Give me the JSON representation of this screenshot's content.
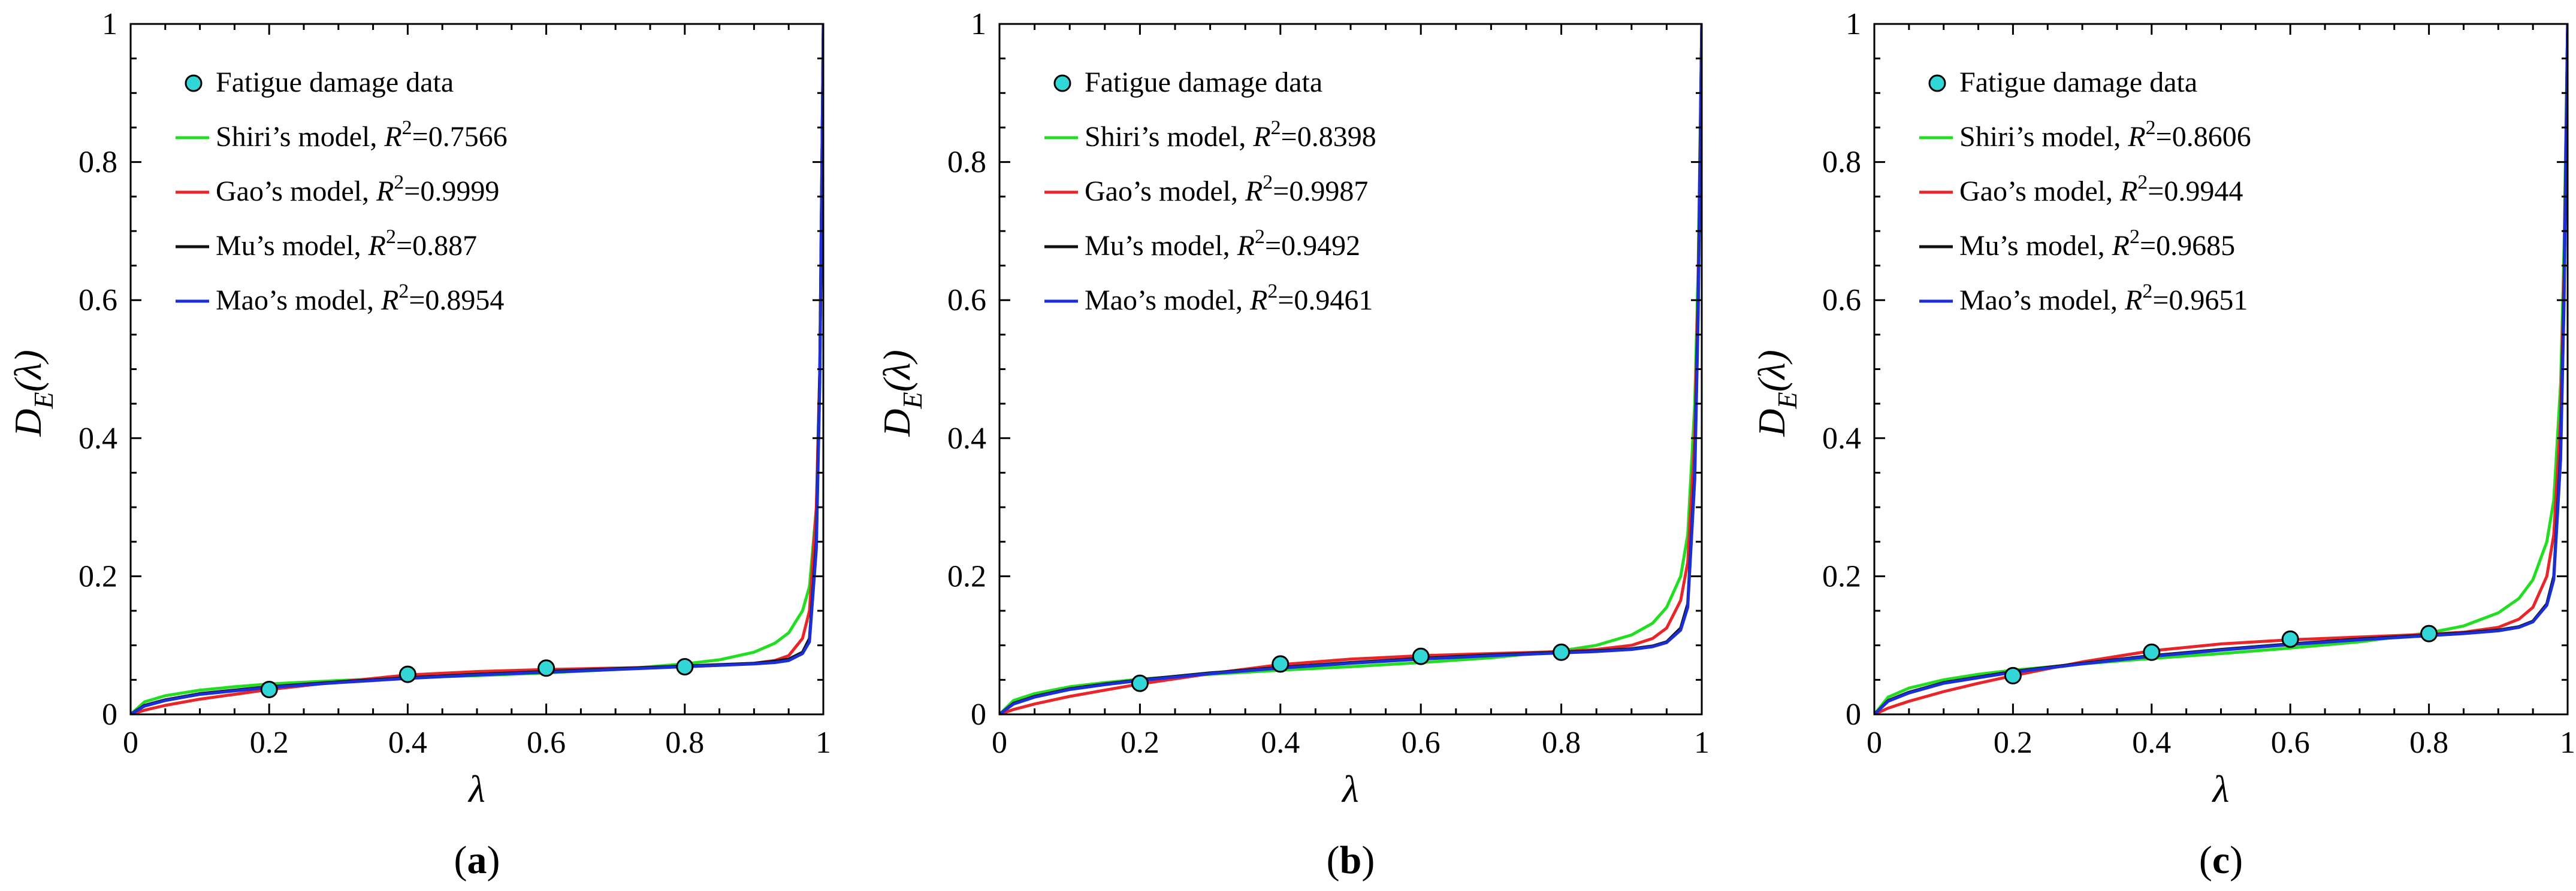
{
  "chart_data": [
    {
      "type": "line",
      "panel_label": "a",
      "xlabel": "λ",
      "ylabel_main": "D",
      "ylabel_sub": "E",
      "ylabel_arg": "(λ)",
      "xlim": [
        0,
        1
      ],
      "ylim": [
        0,
        1
      ],
      "x_ticks": [
        "0",
        "0.2",
        "0.4",
        "0.6",
        "0.8",
        "1"
      ],
      "y_ticks": [
        "0",
        "0.2",
        "0.4",
        "0.6",
        "0.8",
        "1"
      ],
      "scatter": {
        "name": "Fatigue damage data",
        "color": "#33d6d6",
        "x": [
          0.2,
          0.4,
          0.6,
          0.8
        ],
        "y": [
          0.036,
          0.058,
          0.067,
          0.069
        ]
      },
      "series": [
        {
          "name": "Shiri’s model",
          "r2": "0.7566",
          "color": "#22dd22",
          "x": [
            0,
            0.02,
            0.05,
            0.1,
            0.15,
            0.2,
            0.3,
            0.4,
            0.5,
            0.6,
            0.7,
            0.8,
            0.85,
            0.9,
            0.93,
            0.95,
            0.97,
            0.98,
            0.99,
            0.995,
            1.0
          ],
          "y": [
            0,
            0.018,
            0.027,
            0.035,
            0.04,
            0.044,
            0.049,
            0.053,
            0.056,
            0.06,
            0.065,
            0.073,
            0.079,
            0.09,
            0.103,
            0.118,
            0.15,
            0.185,
            0.3,
            0.5,
            1.0
          ]
        },
        {
          "name": "Gao’s model",
          "r2": "0.9999",
          "color": "#e8262a",
          "x": [
            0,
            0.02,
            0.05,
            0.1,
            0.15,
            0.2,
            0.3,
            0.4,
            0.5,
            0.6,
            0.7,
            0.8,
            0.85,
            0.9,
            0.93,
            0.95,
            0.97,
            0.98,
            0.99,
            0.995,
            1.0
          ],
          "y": [
            0,
            0.006,
            0.013,
            0.022,
            0.029,
            0.036,
            0.047,
            0.057,
            0.062,
            0.065,
            0.067,
            0.069,
            0.071,
            0.074,
            0.078,
            0.085,
            0.11,
            0.15,
            0.3,
            0.5,
            1.0
          ]
        },
        {
          "name": "Mu’s model",
          "r2": "0.887",
          "color": "#111111",
          "x": [
            0,
            0.02,
            0.05,
            0.1,
            0.15,
            0.2,
            0.3,
            0.4,
            0.5,
            0.6,
            0.7,
            0.8,
            0.85,
            0.9,
            0.93,
            0.95,
            0.97,
            0.98,
            0.99,
            0.995,
            1.0
          ],
          "y": [
            0,
            0.013,
            0.021,
            0.03,
            0.035,
            0.04,
            0.047,
            0.053,
            0.058,
            0.062,
            0.066,
            0.07,
            0.072,
            0.074,
            0.077,
            0.08,
            0.09,
            0.11,
            0.25,
            0.5,
            1.0
          ]
        },
        {
          "name": "Mao’s model",
          "r2": "0.8954",
          "color": "#1a2fd8",
          "x": [
            0,
            0.02,
            0.05,
            0.1,
            0.15,
            0.2,
            0.3,
            0.4,
            0.5,
            0.6,
            0.7,
            0.8,
            0.85,
            0.9,
            0.93,
            0.95,
            0.97,
            0.98,
            0.99,
            0.995,
            1.0
          ],
          "y": [
            0,
            0.012,
            0.02,
            0.029,
            0.034,
            0.039,
            0.046,
            0.052,
            0.057,
            0.061,
            0.065,
            0.069,
            0.071,
            0.073,
            0.075,
            0.078,
            0.088,
            0.105,
            0.24,
            0.48,
            1.0
          ]
        }
      ]
    },
    {
      "type": "line",
      "panel_label": "b",
      "xlabel": "λ",
      "ylabel_main": "D",
      "ylabel_sub": "E",
      "ylabel_arg": "(λ)",
      "xlim": [
        0,
        1
      ],
      "ylim": [
        0,
        1
      ],
      "x_ticks": [
        "0",
        "0.2",
        "0.4",
        "0.6",
        "0.8",
        "1"
      ],
      "y_ticks": [
        "0",
        "0.2",
        "0.4",
        "0.6",
        "0.8",
        "1"
      ],
      "scatter": {
        "name": "Fatigue damage data",
        "color": "#33d6d6",
        "x": [
          0.2,
          0.4,
          0.6,
          0.8
        ],
        "y": [
          0.045,
          0.073,
          0.084,
          0.09
        ]
      },
      "series": [
        {
          "name": "Shiri’s model",
          "r2": "0.8398",
          "color": "#22dd22",
          "x": [
            0,
            0.02,
            0.05,
            0.1,
            0.15,
            0.2,
            0.3,
            0.4,
            0.5,
            0.6,
            0.7,
            0.8,
            0.85,
            0.9,
            0.93,
            0.95,
            0.97,
            0.98,
            0.99,
            0.995,
            1.0
          ],
          "y": [
            0,
            0.02,
            0.03,
            0.04,
            0.046,
            0.051,
            0.058,
            0.064,
            0.069,
            0.075,
            0.082,
            0.092,
            0.1,
            0.115,
            0.132,
            0.155,
            0.2,
            0.26,
            0.45,
            0.65,
            1.0
          ]
        },
        {
          "name": "Gao’s model",
          "r2": "0.9987",
          "color": "#e8262a",
          "x": [
            0,
            0.02,
            0.05,
            0.1,
            0.15,
            0.2,
            0.3,
            0.4,
            0.5,
            0.6,
            0.7,
            0.8,
            0.85,
            0.9,
            0.93,
            0.95,
            0.97,
            0.98,
            0.99,
            0.995,
            1.0
          ],
          "y": [
            0,
            0.007,
            0.015,
            0.026,
            0.035,
            0.044,
            0.059,
            0.072,
            0.08,
            0.085,
            0.088,
            0.091,
            0.094,
            0.1,
            0.11,
            0.125,
            0.165,
            0.22,
            0.4,
            0.62,
            1.0
          ]
        },
        {
          "name": "Mu’s model",
          "r2": "0.9492",
          "color": "#111111",
          "x": [
            0,
            0.02,
            0.05,
            0.1,
            0.15,
            0.2,
            0.3,
            0.4,
            0.5,
            0.6,
            0.7,
            0.8,
            0.85,
            0.9,
            0.93,
            0.95,
            0.97,
            0.98,
            0.99,
            0.995,
            1.0
          ],
          "y": [
            0,
            0.016,
            0.026,
            0.037,
            0.044,
            0.05,
            0.06,
            0.068,
            0.075,
            0.081,
            0.086,
            0.09,
            0.092,
            0.095,
            0.099,
            0.105,
            0.125,
            0.16,
            0.35,
            0.6,
            1.0
          ]
        },
        {
          "name": "Mao’s model",
          "r2": "0.9461",
          "color": "#1a2fd8",
          "x": [
            0,
            0.02,
            0.05,
            0.1,
            0.15,
            0.2,
            0.3,
            0.4,
            0.5,
            0.6,
            0.7,
            0.8,
            0.85,
            0.9,
            0.93,
            0.95,
            0.97,
            0.98,
            0.99,
            0.995,
            1.0
          ],
          "y": [
            0,
            0.015,
            0.025,
            0.036,
            0.043,
            0.049,
            0.059,
            0.067,
            0.074,
            0.08,
            0.085,
            0.089,
            0.091,
            0.094,
            0.098,
            0.104,
            0.122,
            0.155,
            0.34,
            0.58,
            1.0
          ]
        }
      ]
    },
    {
      "type": "line",
      "panel_label": "c",
      "xlabel": "λ",
      "ylabel_main": "D",
      "ylabel_sub": "E",
      "ylabel_arg": "(λ)",
      "xlim": [
        0,
        1
      ],
      "ylim": [
        0,
        1
      ],
      "x_ticks": [
        "0",
        "0.2",
        "0.4",
        "0.6",
        "0.8",
        "1"
      ],
      "y_ticks": [
        "0",
        "0.2",
        "0.4",
        "0.6",
        "0.8",
        "1"
      ],
      "scatter": {
        "name": "Fatigue damage data",
        "color": "#33d6d6",
        "x": [
          0.2,
          0.4,
          0.6,
          0.8
        ],
        "y": [
          0.056,
          0.09,
          0.109,
          0.117
        ]
      },
      "series": [
        {
          "name": "Shiri’s model",
          "r2": "0.8606",
          "color": "#22dd22",
          "x": [
            0,
            0.02,
            0.05,
            0.1,
            0.15,
            0.2,
            0.3,
            0.4,
            0.5,
            0.6,
            0.7,
            0.8,
            0.85,
            0.9,
            0.93,
            0.95,
            0.97,
            0.98,
            0.99,
            0.995,
            1.0
          ],
          "y": [
            0,
            0.025,
            0.038,
            0.05,
            0.058,
            0.064,
            0.073,
            0.081,
            0.088,
            0.096,
            0.105,
            0.118,
            0.128,
            0.147,
            0.168,
            0.195,
            0.25,
            0.31,
            0.48,
            0.68,
            1.0
          ]
        },
        {
          "name": "Gao’s model",
          "r2": "0.9944",
          "color": "#e8262a",
          "x": [
            0,
            0.02,
            0.05,
            0.1,
            0.15,
            0.2,
            0.3,
            0.4,
            0.5,
            0.6,
            0.7,
            0.8,
            0.85,
            0.9,
            0.93,
            0.95,
            0.97,
            0.98,
            0.99,
            0.995,
            1.0
          ],
          "y": [
            0,
            0.009,
            0.019,
            0.033,
            0.045,
            0.056,
            0.076,
            0.092,
            0.102,
            0.108,
            0.112,
            0.116,
            0.119,
            0.126,
            0.138,
            0.155,
            0.2,
            0.26,
            0.43,
            0.64,
            1.0
          ]
        },
        {
          "name": "Mu’s model",
          "r2": "0.9685",
          "color": "#111111",
          "x": [
            0,
            0.02,
            0.05,
            0.1,
            0.15,
            0.2,
            0.3,
            0.4,
            0.5,
            0.6,
            0.7,
            0.8,
            0.85,
            0.9,
            0.93,
            0.95,
            0.97,
            0.98,
            0.99,
            0.995,
            1.0
          ],
          "y": [
            0,
            0.02,
            0.032,
            0.046,
            0.054,
            0.062,
            0.074,
            0.085,
            0.094,
            0.102,
            0.109,
            0.115,
            0.118,
            0.122,
            0.127,
            0.135,
            0.16,
            0.2,
            0.38,
            0.62,
            1.0
          ]
        },
        {
          "name": "Mao’s model",
          "r2": "0.9651",
          "color": "#1a2fd8",
          "x": [
            0,
            0.02,
            0.05,
            0.1,
            0.15,
            0.2,
            0.3,
            0.4,
            0.5,
            0.6,
            0.7,
            0.8,
            0.85,
            0.9,
            0.93,
            0.95,
            0.97,
            0.98,
            0.99,
            0.995,
            1.0
          ],
          "y": [
            0,
            0.019,
            0.031,
            0.045,
            0.053,
            0.061,
            0.073,
            0.084,
            0.093,
            0.101,
            0.108,
            0.114,
            0.117,
            0.121,
            0.126,
            0.134,
            0.158,
            0.195,
            0.37,
            0.6,
            1.0
          ]
        }
      ]
    }
  ]
}
